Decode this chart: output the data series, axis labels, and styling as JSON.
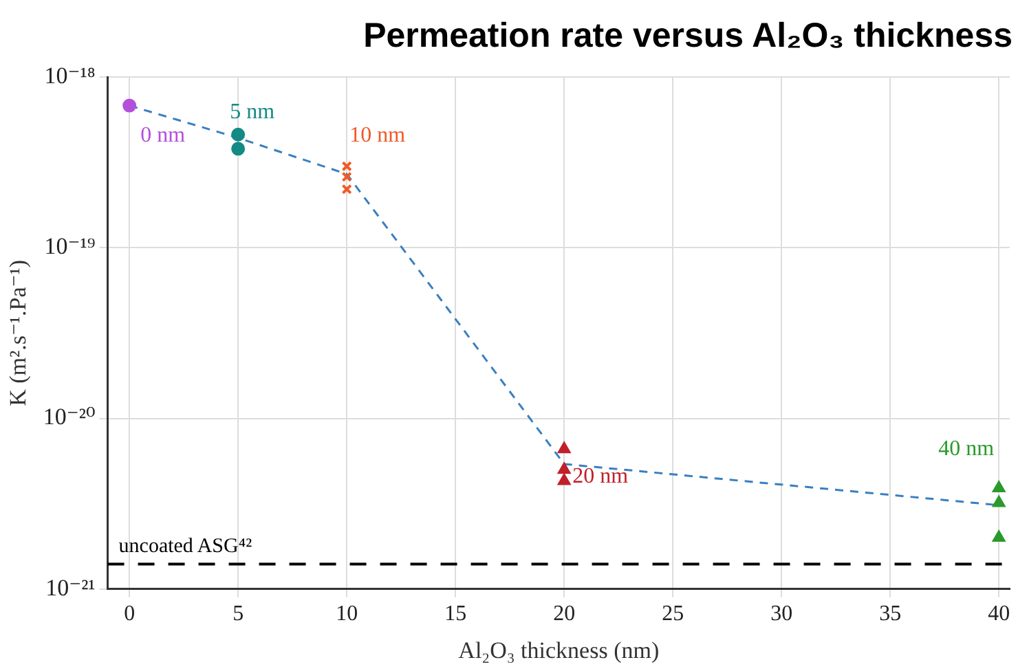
{
  "chart_data": {
    "type": "scatter",
    "title": "Permeation rate versus Al₂O₃ thickness",
    "xlabel": "Al₂O₃ thickness (nm)",
    "ylabel": "K (m².s⁻¹.Pa⁻¹)",
    "log": "y",
    "grid": true,
    "legend": false,
    "xlim": [
      -1,
      40.5
    ],
    "xticks": [
      0,
      5,
      10,
      15,
      20,
      25,
      30,
      35,
      40
    ],
    "ylim": [
      1e-21,
      1e-18
    ],
    "yticks": [
      {
        "value": 1e-21,
        "label": "10⁻²¹"
      },
      {
        "value": 1e-20,
        "label": "10⁻²⁰"
      },
      {
        "value": 1e-19,
        "label": "10⁻¹⁹"
      },
      {
        "value": 1e-18,
        "label": "10⁻¹⁸"
      }
    ],
    "series": [
      {
        "type": "line",
        "color": "#3a7fc0",
        "line_style": "dashed",
        "marker": "none",
        "x": [
          0,
          5,
          10,
          20,
          40
        ],
        "values": [
          6.8e-19,
          4.4e-19,
          2.7e-19,
          5.4e-21,
          3.1e-21
        ]
      },
      {
        "name": "0 nm",
        "color": "#b44fdc",
        "marker": "circle",
        "x": [
          0
        ],
        "values": [
          6.8e-19
        ]
      },
      {
        "name": "5 nm",
        "color": "#138a84",
        "marker": "circle",
        "x": [
          5,
          5
        ],
        "values": [
          4.6e-19,
          3.8e-19
        ]
      },
      {
        "name": "10 nm",
        "color": "#f05a28",
        "marker": "cross",
        "x": [
          10,
          10,
          10
        ],
        "values": [
          3e-19,
          2.6e-19,
          2.2e-19
        ]
      },
      {
        "name": "20 nm",
        "color": "#c0202a",
        "marker": "triangle",
        "x": [
          20,
          20,
          20
        ],
        "values": [
          6.6e-21,
          5e-21,
          4.3e-21
        ]
      },
      {
        "name": "40 nm",
        "color": "#2a9a2a",
        "marker": "triangle",
        "x": [
          40,
          40,
          40
        ],
        "values": [
          3.9e-21,
          3.2e-21,
          2e-21
        ]
      }
    ],
    "ref_lines": [
      {
        "axis": "y",
        "value": 1.4e-21,
        "label": "uncoated ASG⁴²",
        "color": "#000000",
        "line_style": "dashed"
      }
    ]
  }
}
